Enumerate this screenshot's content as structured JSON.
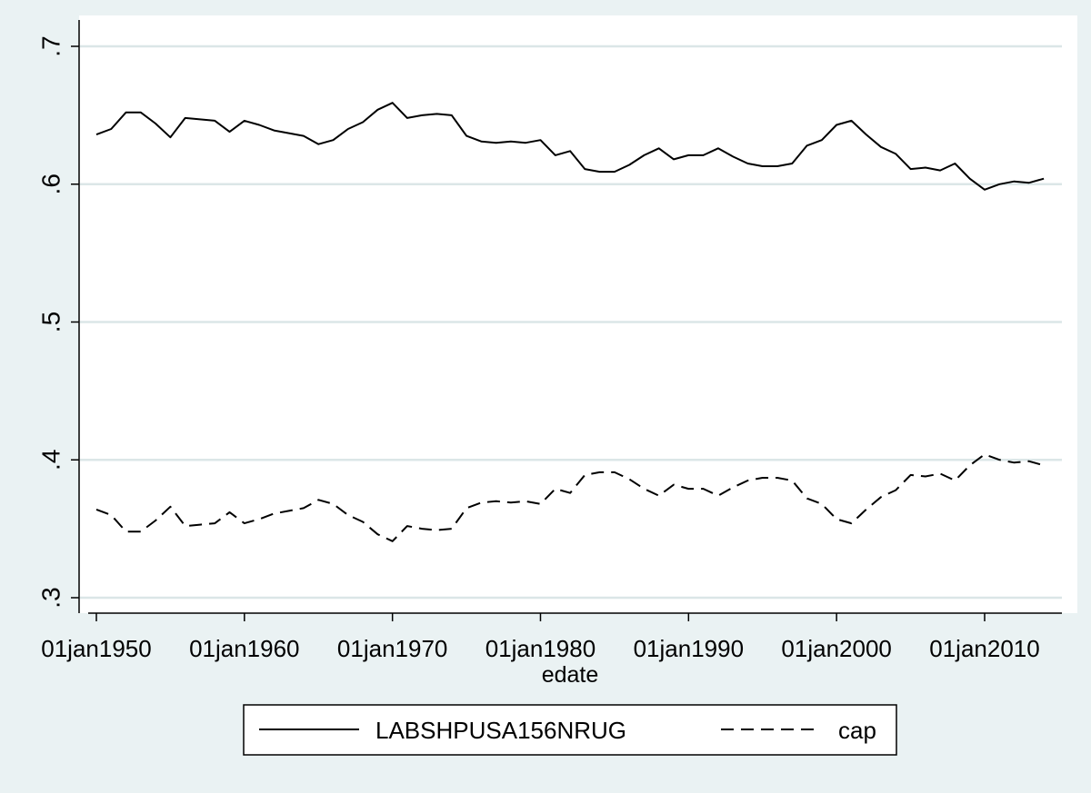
{
  "chart_data": {
    "type": "line",
    "title": "",
    "xlabel": "edate",
    "ylabel": "",
    "xlim": [
      "1950-01-01",
      "2014-01-01"
    ],
    "ylim": [
      0.3,
      0.7
    ],
    "x_ticks": [
      "1950-01-01",
      "1960-01-01",
      "1970-01-01",
      "1980-01-01",
      "1990-01-01",
      "2000-01-01",
      "2010-01-01"
    ],
    "x_tick_labels": [
      "01jan1950",
      "01jan1960",
      "01jan1970",
      "01jan1980",
      "01jan1990",
      "01jan2000",
      "01jan2010"
    ],
    "y_ticks": [
      0.3,
      0.4,
      0.5,
      0.6,
      0.7
    ],
    "y_tick_labels": [
      ".3",
      ".4",
      ".5",
      ".6",
      ".7"
    ],
    "grid": "horizontal",
    "legend_position": "bottom",
    "x": [
      "1950-01-01",
      "1951-01-01",
      "1952-01-01",
      "1953-01-01",
      "1954-01-01",
      "1955-01-01",
      "1956-01-01",
      "1957-01-01",
      "1958-01-01",
      "1959-01-01",
      "1960-01-01",
      "1961-01-01",
      "1962-01-01",
      "1963-01-01",
      "1964-01-01",
      "1965-01-01",
      "1966-01-01",
      "1967-01-01",
      "1968-01-01",
      "1969-01-01",
      "1970-01-01",
      "1971-01-01",
      "1972-01-01",
      "1973-01-01",
      "1974-01-01",
      "1975-01-01",
      "1976-01-01",
      "1977-01-01",
      "1978-01-01",
      "1979-01-01",
      "1980-01-01",
      "1981-01-01",
      "1982-01-01",
      "1983-01-01",
      "1984-01-01",
      "1985-01-01",
      "1986-01-01",
      "1987-01-01",
      "1988-01-01",
      "1989-01-01",
      "1990-01-01",
      "1991-01-01",
      "1992-01-01",
      "1993-01-01",
      "1994-01-01",
      "1995-01-01",
      "1996-01-01",
      "1997-01-01",
      "1998-01-01",
      "1999-01-01",
      "2000-01-01",
      "2001-01-01",
      "2002-01-01",
      "2003-01-01",
      "2004-01-01",
      "2005-01-01",
      "2006-01-01",
      "2007-01-01",
      "2008-01-01",
      "2009-01-01",
      "2010-01-01",
      "2011-01-01",
      "2012-01-01",
      "2013-01-01",
      "2014-01-01"
    ],
    "series": [
      {
        "name": "LABSHPUSA156NRUG",
        "line_style": "solid",
        "color": "#000000",
        "values": [
          0.636,
          0.64,
          0.652,
          0.652,
          0.644,
          0.634,
          0.648,
          0.647,
          0.646,
          0.638,
          0.646,
          0.643,
          0.639,
          0.637,
          0.635,
          0.629,
          0.632,
          0.64,
          0.645,
          0.654,
          0.659,
          0.648,
          0.65,
          0.651,
          0.65,
          0.635,
          0.631,
          0.63,
          0.631,
          0.63,
          0.632,
          0.621,
          0.624,
          0.611,
          0.609,
          0.609,
          0.614,
          0.621,
          0.626,
          0.618,
          0.621,
          0.621,
          0.626,
          0.62,
          0.615,
          0.613,
          0.613,
          0.615,
          0.628,
          0.632,
          0.643,
          0.646,
          0.636,
          0.627,
          0.622,
          0.611,
          0.612,
          0.61,
          0.615,
          0.604,
          0.596,
          0.6,
          0.602,
          0.601,
          0.604
        ]
      },
      {
        "name": "cap",
        "line_style": "dashed",
        "color": "#000000",
        "values": [
          0.364,
          0.36,
          0.348,
          0.348,
          0.356,
          0.366,
          0.352,
          0.353,
          0.354,
          0.362,
          0.354,
          0.357,
          0.361,
          0.363,
          0.365,
          0.371,
          0.368,
          0.36,
          0.355,
          0.346,
          0.341,
          0.352,
          0.35,
          0.349,
          0.35,
          0.365,
          0.369,
          0.37,
          0.369,
          0.37,
          0.368,
          0.379,
          0.376,
          0.389,
          0.391,
          0.391,
          0.386,
          0.379,
          0.374,
          0.382,
          0.379,
          0.379,
          0.374,
          0.38,
          0.385,
          0.387,
          0.387,
          0.385,
          0.372,
          0.368,
          0.357,
          0.354,
          0.364,
          0.373,
          0.378,
          0.389,
          0.388,
          0.39,
          0.385,
          0.396,
          0.404,
          0.4,
          0.398,
          0.399,
          0.396
        ]
      }
    ]
  }
}
